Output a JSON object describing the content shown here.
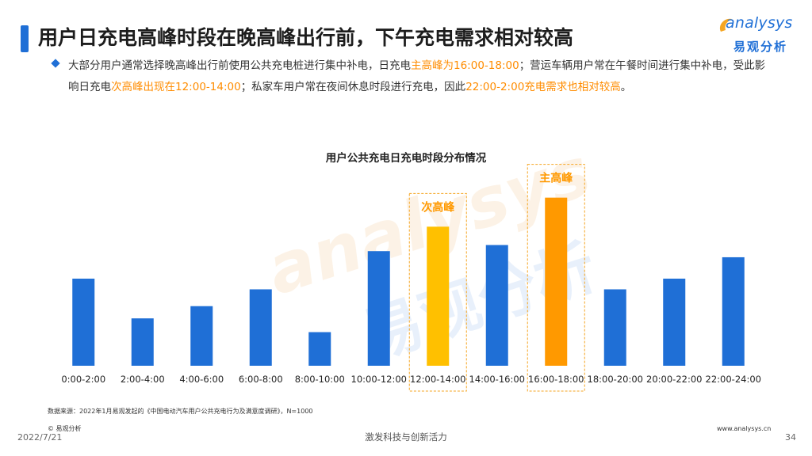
{
  "header": {
    "title": "用户日充电高峰时段在晚高峰出行前，下午充电需求相对较高"
  },
  "logo": {
    "word": "analysys",
    "cn": "易观分析"
  },
  "paragraph": {
    "p1": "大部分用户通常选择晚高峰出行前使用公共充电桩进行集中补电，日充电",
    "h1": "主高峰为16:00-18:00",
    "p2": "；营运车辆用户常在午餐时间进行集中补电，受此影响日充电",
    "h2": "次高峰出现在12:00-14:00",
    "p3": "；私家车用户常在夜间休息时段进行充电，因此",
    "h3": "22:00-2:00充电需求也相对较高",
    "p4": "。"
  },
  "watermark": {
    "word": "analysys",
    "cn": "易观分析"
  },
  "chart_data": {
    "type": "bar",
    "title": "用户公共充电日充电时段分布情况",
    "categories": [
      "0:00-2:00",
      "2:00-4:00",
      "4:00-6:00",
      "6:00-8:00",
      "8:00-10:00",
      "10:00-12:00",
      "12:00-14:00",
      "14:00-16:00",
      "16:00-18:00",
      "18:00-20:00",
      "20:00-22:00",
      "22:00-24:00"
    ],
    "values": [
      57,
      31,
      39,
      50,
      22,
      75,
      91,
      79,
      110,
      50,
      57,
      71
    ],
    "ylim": [
      0,
      115
    ],
    "grid": false,
    "xlabel": "",
    "ylabel": "",
    "highlights": [
      {
        "index": 6,
        "label": "次高峰",
        "color": "#ffc000"
      },
      {
        "index": 8,
        "label": "主高峰",
        "color": "#ff9900"
      }
    ],
    "colors": {
      "default": "#1f6fd6",
      "highlight_text": "#ff9900",
      "box": "#f5a623"
    }
  },
  "footer": {
    "source": "数据来源：2022年1月易观发起的《中国电动汽车用户公共充电行为及满意度调研》，N=1000",
    "copyright": "© 易观分析",
    "date": "2022/7/21",
    "slogan": "激发科技与创新活力",
    "url": "www.analysys.cn",
    "page": "34"
  }
}
